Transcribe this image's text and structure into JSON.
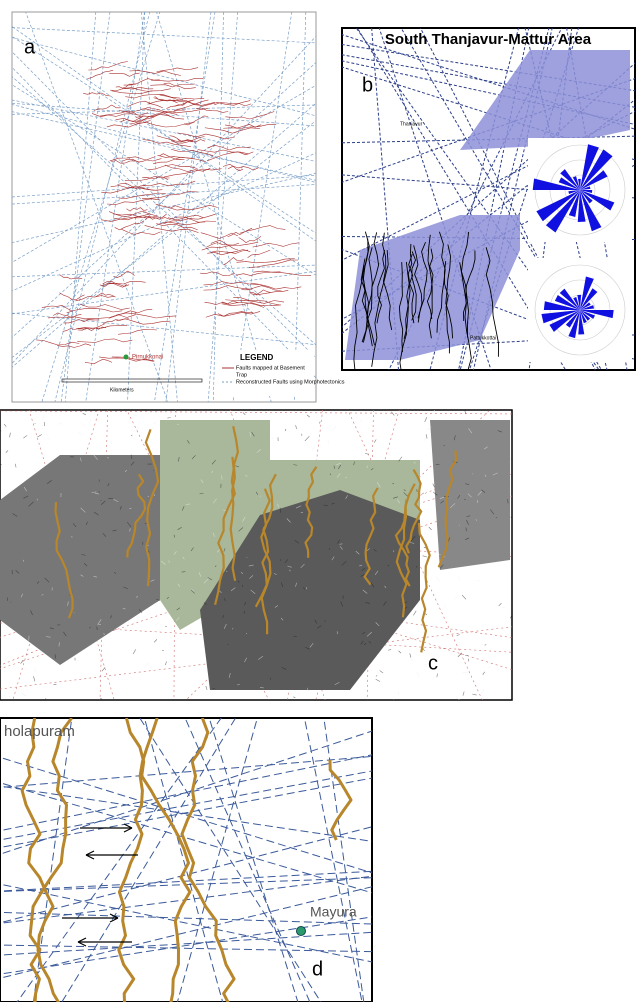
{
  "panels": {
    "a": {
      "label": "a",
      "place": "Pirnukkonai",
      "legend": {
        "title": "LEGEND",
        "items": [
          "Faults mapped at Basement",
          "Trap",
          "Reconstructed Faults using Morphotectonics"
        ]
      },
      "scale": "Kilometers"
    },
    "b": {
      "label": "b",
      "title": "South Thanjavur-Mattur Area",
      "places": [
        "Thanjavur",
        "Pattukkottai"
      ]
    },
    "c": {
      "label": "c"
    },
    "d": {
      "label": "d",
      "places": [
        "holapuram",
        "Mayura"
      ]
    }
  }
}
